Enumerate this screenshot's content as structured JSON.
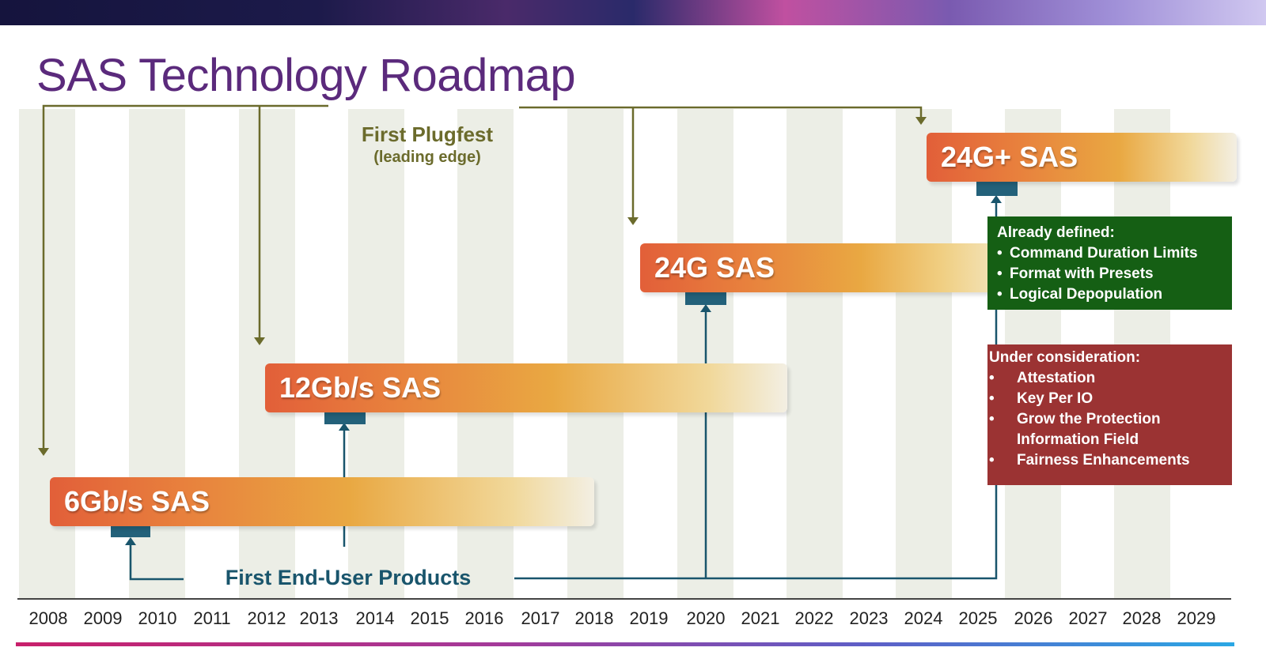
{
  "title": "SAS Technology Roadmap",
  "years": [
    "2008",
    "2009",
    "2010",
    "2011",
    "2012",
    "2013",
    "2014",
    "2015",
    "2016",
    "2017",
    "2018",
    "2019",
    "2020",
    "2021",
    "2022",
    "2023",
    "2024",
    "2025",
    "2026",
    "2027",
    "2028",
    "2029"
  ],
  "generations": [
    {
      "label": "6Gb/s SAS"
    },
    {
      "label": "12Gb/s SAS"
    },
    {
      "label": "24G SAS"
    },
    {
      "label": "24G+ SAS"
    }
  ],
  "plugfest": {
    "label": "First Plugfest",
    "sublabel": "(leading edge)"
  },
  "end_user": {
    "label": "First End-User Products"
  },
  "already_defined": {
    "title": "Already defined:",
    "items": [
      "Command Duration Limits",
      "Format with Presets",
      "Logical Depopulation"
    ]
  },
  "under_consideration": {
    "title": "Under consideration:",
    "items": [
      "Attestation",
      "Key Per IO",
      "Grow the Protection Information Field",
      "Fairness Enhancements"
    ]
  },
  "colors": {
    "title": "#5b2a7c",
    "plugfest_line": "#6b6b2c",
    "enduser_line": "#19556c",
    "already_defined_bg": "#155f14",
    "under_consideration_bg": "#9b3333"
  }
}
